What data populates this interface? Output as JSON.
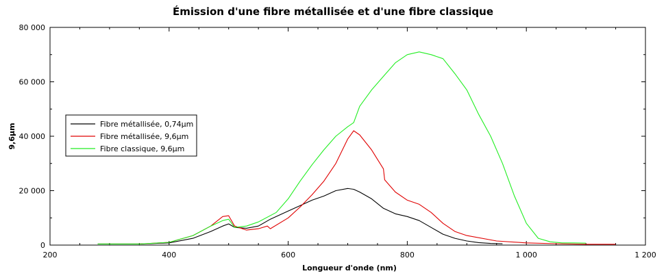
{
  "chart_data": {
    "type": "line",
    "title": "Émission d'une fibre métallisée et d'une fibre classique",
    "xlabel": "Longueur d'onde (nm)",
    "ylabel": "9,6µm",
    "xlim": [
      200,
      1200
    ],
    "ylim": [
      0,
      80000
    ],
    "xticks": [
      200,
      400,
      600,
      800,
      1000,
      1200
    ],
    "xtick_labels": [
      "200",
      "400",
      "600",
      "800",
      "1 000",
      "1 200"
    ],
    "yticks": [
      0,
      20000,
      40000,
      60000,
      80000
    ],
    "ytick_labels": [
      "0",
      "20 000",
      "40 000",
      "60 000",
      "80 000"
    ],
    "grid": false,
    "legend_position": "left",
    "series": [
      {
        "name": "Fibre métallisée, 0,74µm",
        "color": "#000000",
        "x": [
          280,
          350,
          400,
          440,
          470,
          490,
          500,
          510,
          530,
          550,
          570,
          600,
          620,
          640,
          660,
          680,
          700,
          710,
          720,
          740,
          760,
          780,
          800,
          820,
          840,
          860,
          880,
          900,
          920,
          940,
          960
        ],
        "y": [
          400,
          400,
          800,
          2500,
          5000,
          7000,
          7800,
          6500,
          6200,
          7000,
          9500,
          12500,
          14500,
          16500,
          18000,
          20000,
          20800,
          20500,
          19500,
          17000,
          13500,
          11500,
          10500,
          9000,
          6500,
          4000,
          2500,
          1500,
          900,
          600,
          500
        ]
      },
      {
        "name": "Fibre métallisée, 9,6µm",
        "color": "#e00000",
        "x": [
          280,
          350,
          400,
          440,
          470,
          490,
          500,
          510,
          530,
          550,
          565,
          570,
          600,
          620,
          640,
          660,
          680,
          700,
          710,
          720,
          740,
          760,
          762,
          780,
          800,
          820,
          840,
          860,
          880,
          900,
          950,
          1000,
          1050,
          1100,
          1150
        ],
        "y": [
          400,
          400,
          1000,
          3500,
          7000,
          10500,
          10800,
          7000,
          5500,
          6000,
          7000,
          6000,
          10000,
          14000,
          18500,
          23500,
          30000,
          39000,
          42000,
          40500,
          35000,
          28000,
          24000,
          19500,
          16500,
          15000,
          12000,
          8000,
          5000,
          3500,
          1500,
          800,
          500,
          300,
          300
        ]
      },
      {
        "name": "Fibre classique, 9,6µm",
        "color": "#22ee22",
        "x": [
          280,
          350,
          400,
          440,
          470,
          490,
          500,
          510,
          530,
          550,
          580,
          600,
          620,
          640,
          660,
          680,
          700,
          710,
          720,
          740,
          760,
          780,
          800,
          820,
          840,
          860,
          880,
          900,
          920,
          940,
          960,
          980,
          1000,
          1020,
          1040,
          1060,
          1080,
          1100
        ],
        "y": [
          400,
          400,
          1000,
          3500,
          7000,
          9000,
          9500,
          6500,
          7000,
          8500,
          12000,
          17000,
          23500,
          29500,
          35000,
          40000,
          43500,
          45000,
          51000,
          57000,
          62000,
          67000,
          70000,
          71000,
          70000,
          68500,
          63000,
          57000,
          48000,
          40000,
          30000,
          18000,
          8000,
          2500,
          1200,
          800,
          800,
          700
        ]
      }
    ]
  }
}
